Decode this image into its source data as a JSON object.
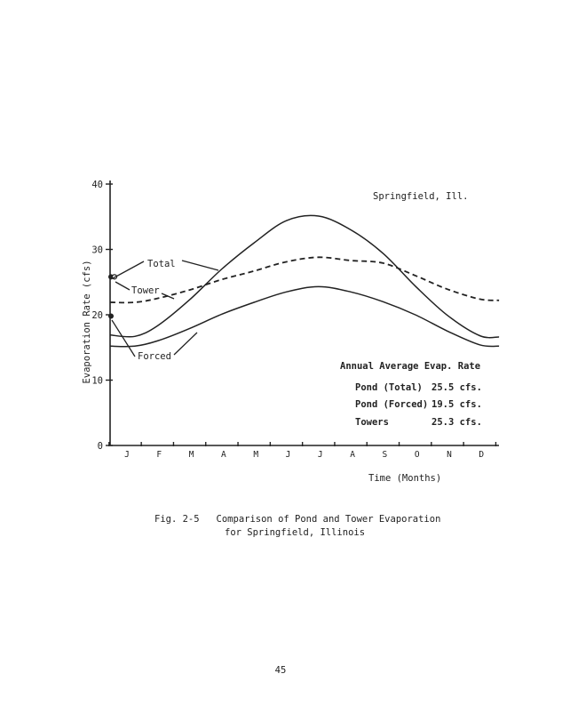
{
  "chart_data": {
    "type": "line",
    "title": "Springfield, Ill.",
    "xlabel": "Time (Months)",
    "ylabel": "Evaporation Rate (cfs)",
    "ylim": [
      0,
      40
    ],
    "yticks": [
      "0",
      "10",
      "20",
      "30",
      "40"
    ],
    "categories": [
      "J",
      "F",
      "M",
      "A",
      "M",
      "J",
      "J",
      "A",
      "S",
      "O",
      "N",
      "D"
    ],
    "series": [
      {
        "name": "Total",
        "style": "solid",
        "x": [
          0,
          0.3,
          1,
          2,
          3,
          4,
          5,
          6,
          7,
          8,
          9,
          10,
          11,
          11.6
        ],
        "y": [
          16.9,
          16.7,
          18.3,
          22.3,
          27.0,
          31.0,
          34.4,
          35.1,
          33.0,
          29.4,
          24.4,
          19.9,
          16.8,
          16.6
        ]
      },
      {
        "name": "Tower",
        "style": "dashed",
        "x": [
          0,
          0.3,
          1,
          2,
          3,
          4,
          5,
          6,
          7,
          8,
          9,
          10,
          11,
          11.6
        ],
        "y": [
          21.9,
          21.9,
          22.5,
          23.8,
          25.4,
          26.7,
          28.1,
          28.8,
          28.3,
          27.9,
          26.0,
          23.9,
          22.4,
          22.2
        ]
      },
      {
        "name": "Forced",
        "style": "solid",
        "x": [
          0,
          0.3,
          1,
          2,
          3,
          4,
          5,
          6,
          7,
          8,
          9,
          10,
          11,
          11.6
        ],
        "y": [
          15.2,
          15.2,
          16.0,
          17.9,
          20.1,
          21.9,
          23.5,
          24.3,
          23.5,
          22.0,
          20.0,
          17.5,
          15.4,
          15.2
        ]
      }
    ],
    "annotations": {
      "heading": "Annual Average Evap. Rate",
      "rows": [
        {
          "label": "Pond (Total)",
          "value": "25.5 cfs."
        },
        {
          "label": "Pond (Forced)",
          "value": "19.5 cfs."
        },
        {
          "label": "Towers",
          "value": "25.3 cfs."
        }
      ]
    },
    "grid": false,
    "legend": "inline-labels"
  },
  "caption": {
    "line1": "Fig. 2-5   Comparison of Pond and Tower Evaporation",
    "line2": "for Springfield, Illinois"
  },
  "page_number": "45",
  "colors": {
    "ink": "#222222",
    "paper": "#ffffff"
  }
}
